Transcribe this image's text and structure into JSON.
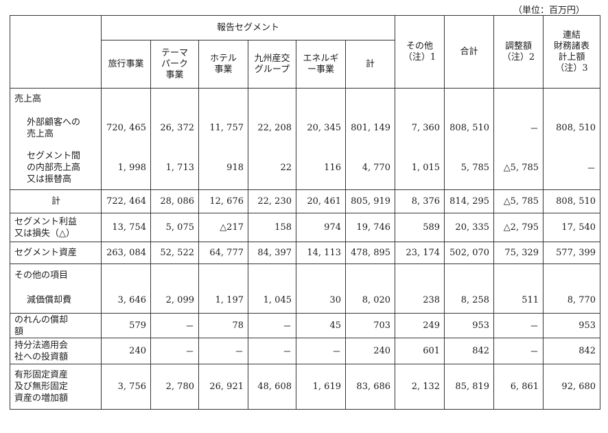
{
  "unit_note": "（単位：百万円）",
  "header": {
    "reportable_segment": "報告セグメント",
    "columns": [
      "旅行事業",
      "テーマ\nパーク\n事業",
      "ホテル\n事業",
      "九州産交\nグループ",
      "エネルギ\nー事業",
      "計",
      "その他\n（注）1",
      "合計",
      "調整額\n（注）2",
      "連結\n財務諸表\n計上額\n（注）3"
    ]
  },
  "rows": [
    {
      "label": "売上高",
      "values": []
    },
    {
      "label": "外部顧客への\n売上高",
      "values": [
        "720, 465",
        "26, 372",
        "11, 757",
        "22, 208",
        "20, 345",
        "801, 149",
        "7, 360",
        "808, 510",
        "－",
        "808, 510"
      ]
    },
    {
      "label": "セグメント間\nの内部売上高\n又は振替高",
      "values": [
        "1, 998",
        "1, 713",
        "918",
        "22",
        "116",
        "4, 770",
        "1, 015",
        "5, 785",
        "△5, 785",
        "－"
      ]
    },
    {
      "label": "計",
      "values": [
        "722, 464",
        "28, 086",
        "12, 676",
        "22, 230",
        "20, 461",
        "805, 919",
        "8, 376",
        "814, 295",
        "△5, 785",
        "808, 510"
      ]
    },
    {
      "label": "セグメント利益\n又は損失（△）",
      "values": [
        "13, 754",
        "5, 075",
        "△217",
        "158",
        "974",
        "19, 746",
        "589",
        "20, 335",
        "△2, 795",
        "17, 540"
      ]
    },
    {
      "label": "セグメント資産",
      "values": [
        "263, 084",
        "52, 522",
        "64, 777",
        "84, 397",
        "14, 113",
        "478, 895",
        "23, 174",
        "502, 070",
        "75, 329",
        "577, 399"
      ]
    },
    {
      "label": "その他の項目",
      "values": []
    },
    {
      "label": "減価償却費",
      "values": [
        "3, 646",
        "2, 099",
        "1, 197",
        "1, 045",
        "30",
        "8, 020",
        "238",
        "8, 258",
        "511",
        "8, 770"
      ]
    },
    {
      "label": "のれんの償却\n額",
      "values": [
        "579",
        "－",
        "78",
        "－",
        "45",
        "703",
        "249",
        "953",
        "－",
        "953"
      ]
    },
    {
      "label": "持分法適用会\n社への投資額",
      "values": [
        "240",
        "－",
        "－",
        "－",
        "－",
        "240",
        "601",
        "842",
        "－",
        "842"
      ]
    },
    {
      "label": "有形固定資産\n及び無形固定\n資産の増加額",
      "values": [
        "3, 756",
        "2, 780",
        "26, 921",
        "48, 608",
        "1, 619",
        "83, 686",
        "2, 132",
        "85, 819",
        "6, 861",
        "92, 680"
      ]
    }
  ]
}
